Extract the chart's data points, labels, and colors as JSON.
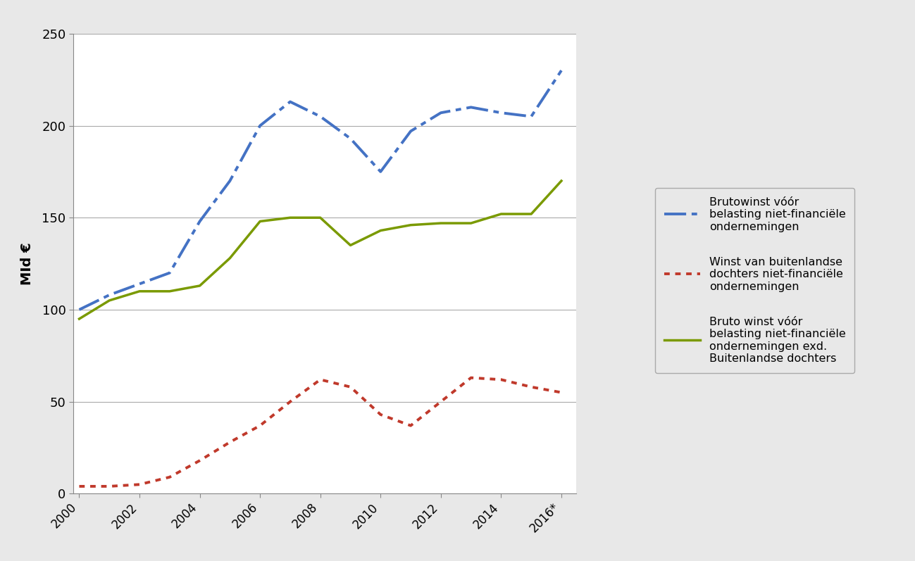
{
  "years": [
    2000,
    2001,
    2002,
    2003,
    2004,
    2005,
    2006,
    2007,
    2008,
    2009,
    2010,
    2011,
    2012,
    2013,
    2014,
    2015,
    2016
  ],
  "blue_dash_dot": [
    100,
    108,
    114,
    120,
    148,
    170,
    200,
    213,
    205,
    193,
    175,
    197,
    207,
    210,
    207,
    205,
    230
  ],
  "red_dotted": [
    4,
    4,
    5,
    9,
    18,
    28,
    37,
    50,
    62,
    58,
    43,
    37,
    50,
    63,
    62,
    58,
    55
  ],
  "green_solid": [
    95,
    105,
    110,
    110,
    113,
    128,
    148,
    150,
    150,
    135,
    143,
    146,
    147,
    147,
    152,
    152,
    170
  ],
  "blue_color": "#4472C4",
  "red_color": "#C0392B",
  "green_color": "#7A9A01",
  "ylabel": "MId €",
  "ylim": [
    0,
    250
  ],
  "yticks": [
    0,
    50,
    100,
    150,
    200,
    250
  ],
  "xtick_positions": [
    2000,
    2002,
    2004,
    2006,
    2008,
    2010,
    2012,
    2014,
    2016
  ],
  "xtick_labels": [
    "2000",
    "2002",
    "2004",
    "2006",
    "2008",
    "2010",
    "2012",
    "2014",
    "2016*"
  ],
  "legend_label_blue": "Brutowinst vóór\nbelasting niet-financiële\nondernemingen",
  "legend_label_red": "Winst van buitenlandse\ndochters niet-financiële\nondernemingen",
  "legend_label_green": "Bruto winst vóór\nbelasting niet-financiële\nondernemingen exd.\nBuitenlandse dochters",
  "bg_color": "#E8E8E8",
  "plot_bg_color": "#FFFFFF",
  "grid_color": "#AAAAAA",
  "axis_line_color": "#888888",
  "figsize": [
    12.99,
    7.97
  ],
  "dpi": 100
}
